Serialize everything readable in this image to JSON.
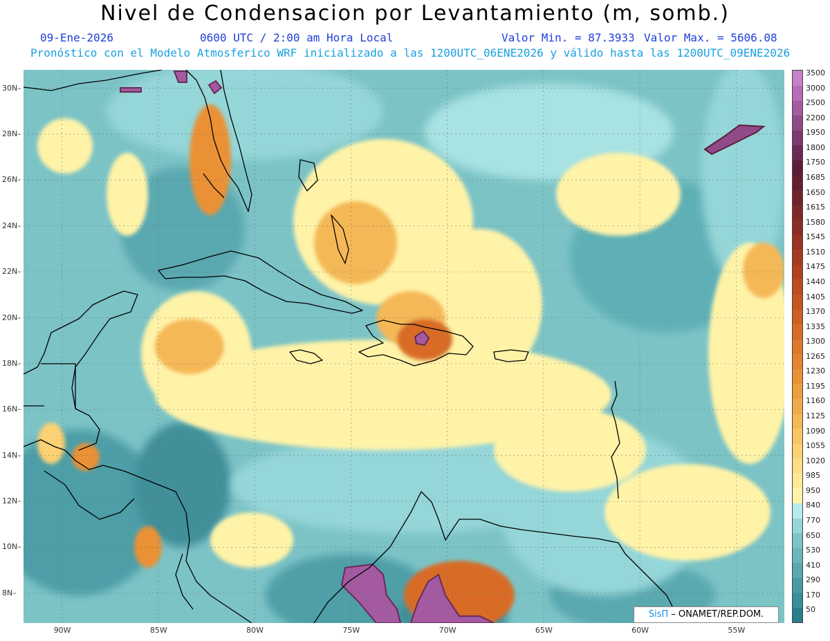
{
  "title": "Nivel de Condensacion por Levantamiento (m, somb.)",
  "date": "09-Ene-2026",
  "time": "0600 UTC / 2:00 am Hora Local",
  "min_label": "Valor Min. = 87.3933",
  "max_label": "Valor Max. = 5606.08",
  "forecast": "Pronóstico con el Modelo Atmosferico WRF inicializado a las 1200UTC_06ENE2026 y válido hasta las  1200UTC_09ENE2026",
  "credit": {
    "brand": "SisΠ",
    "text": "– ONAMET/REP.DOM."
  },
  "map": {
    "lon_range": [
      -92,
      -52.5
    ],
    "lat_range": [
      6.7,
      30.8
    ],
    "lon_ticks": [
      "90W",
      "85W",
      "80W",
      "75W",
      "70W",
      "65W",
      "60W",
      "55W"
    ],
    "lat_ticks": [
      "8N",
      "10N",
      "12N",
      "14N",
      "16N",
      "18N",
      "20N",
      "22N",
      "24N",
      "26N",
      "28N",
      "30N"
    ]
  },
  "colorbar": {
    "levels": [
      "50",
      "170",
      "290",
      "410",
      "530",
      "650",
      "770",
      "840",
      "950",
      "985",
      "1020",
      "1055",
      "1090",
      "1125",
      "1160",
      "1195",
      "1230",
      "1265",
      "1300",
      "1335",
      "1370",
      "1405",
      "1440",
      "1475",
      "1510",
      "1545",
      "1580",
      "1615",
      "1650",
      "1685",
      "1750",
      "1800",
      "1950",
      "2200",
      "2500",
      "3000",
      "3500"
    ],
    "colors": [
      "#2a7f8f",
      "#3a8d9a",
      "#4a9aa6",
      "#5aa8b0",
      "#6bb6bc",
      "#7dc4c8",
      "#95d6d8",
      "#b8ecec",
      "#fff3a8",
      "#ffe896",
      "#ffdd84",
      "#fbd173",
      "#f8c563",
      "#f5b856",
      "#f2ab4a",
      "#ee9e3f",
      "#ea9136",
      "#e5842f",
      "#df7829",
      "#d86c25",
      "#d06022",
      "#c75520",
      "#bd4b1f",
      "#b2421f",
      "#a63a20",
      "#993322",
      "#8c2d25",
      "#7e2828",
      "#70232c",
      "#641f31",
      "#5c1d3a",
      "#6a2a55",
      "#7d3a70",
      "#904a88",
      "#a35aa0",
      "#b66cb6",
      "#c880c8"
    ]
  }
}
